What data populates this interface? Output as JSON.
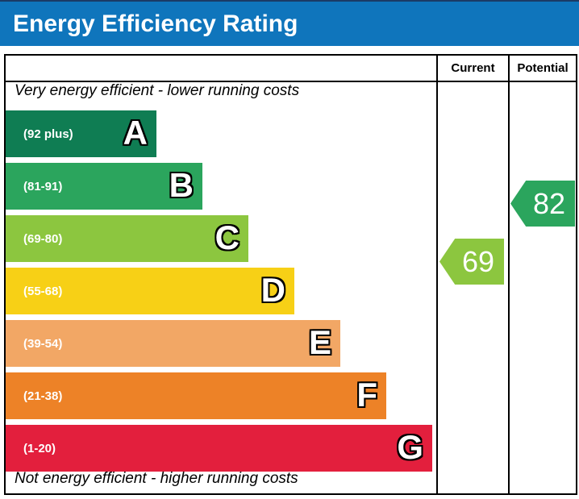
{
  "title": "Energy Efficiency Rating",
  "header": {
    "current": "Current",
    "potential": "Potential"
  },
  "captions": {
    "top": "Very energy efficient - lower running costs",
    "bottom": "Not energy efficient - higher running costs"
  },
  "bands": [
    {
      "letter": "A",
      "range": "(92 plus)",
      "color": "#0f7d53"
    },
    {
      "letter": "B",
      "range": "(81-91)",
      "color": "#2ba55d"
    },
    {
      "letter": "C",
      "range": "(69-80)",
      "color": "#8cc63f"
    },
    {
      "letter": "D",
      "range": "(55-68)",
      "color": "#f7d016"
    },
    {
      "letter": "E",
      "range": "(39-54)",
      "color": "#f2a765"
    },
    {
      "letter": "F",
      "range": "(21-38)",
      "color": "#ed8227"
    },
    {
      "letter": "G",
      "range": "(1-20)",
      "color": "#e31f3d"
    }
  ],
  "ratings": {
    "current": {
      "value": "69",
      "color": "#8cc63f"
    },
    "potential": {
      "value": "82",
      "color": "#2ba55d"
    }
  },
  "colors": {
    "title_bar": "#0f75bc",
    "top_line": "#1a3b66",
    "border": "#000000"
  },
  "chart_data": {
    "type": "bar",
    "title": "Energy Efficiency Rating",
    "categories": [
      "A",
      "B",
      "C",
      "D",
      "E",
      "F",
      "G"
    ],
    "band_ranges": [
      "92 plus",
      "81-91",
      "69-80",
      "55-68",
      "39-54",
      "21-38",
      "1-20"
    ],
    "band_colors": [
      "#0f7d53",
      "#2ba55d",
      "#8cc63f",
      "#f7d016",
      "#f2a765",
      "#ed8227",
      "#e31f3d"
    ],
    "series": [
      {
        "name": "Current",
        "values": [
          69
        ],
        "band": "C"
      },
      {
        "name": "Potential",
        "values": [
          82
        ],
        "band": "B"
      }
    ],
    "scale_min": 1,
    "scale_max": 100,
    "legend_position": "none",
    "grid": false,
    "annotations": [
      "Very energy efficient - lower running costs",
      "Not energy efficient - higher running costs"
    ]
  }
}
